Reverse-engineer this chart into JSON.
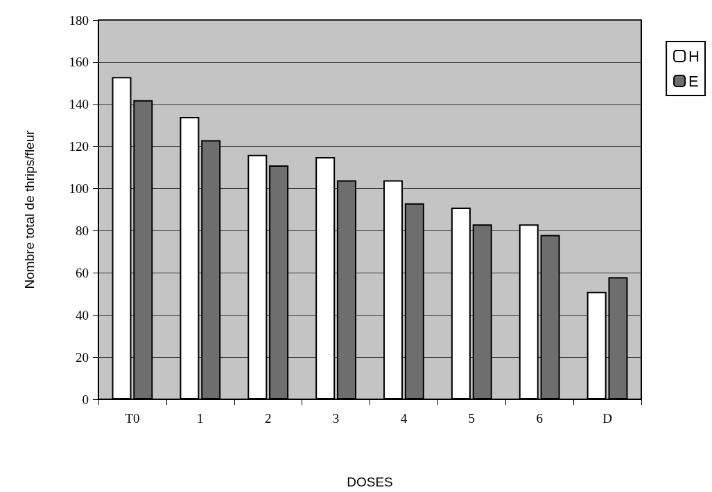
{
  "chart_data": {
    "type": "bar",
    "xlabel": "DOSES",
    "ylabel": "Nombre total de thrips/fleur",
    "categories": [
      "T0",
      "1",
      "2",
      "3",
      "4",
      "5",
      "6",
      "D"
    ],
    "series": [
      {
        "name": "H",
        "color": "#ffffff",
        "values": [
          153,
          134,
          116,
          115,
          104,
          91,
          83,
          51
        ]
      },
      {
        "name": "E",
        "color": "#6e6e6e",
        "values": [
          142,
          123,
          111,
          104,
          93,
          83,
          78,
          58
        ]
      }
    ],
    "ylim": [
      0,
      180
    ],
    "yticks": [
      0,
      20,
      40,
      60,
      80,
      100,
      120,
      140,
      160,
      180
    ],
    "grid": "y",
    "legend": "top right"
  }
}
